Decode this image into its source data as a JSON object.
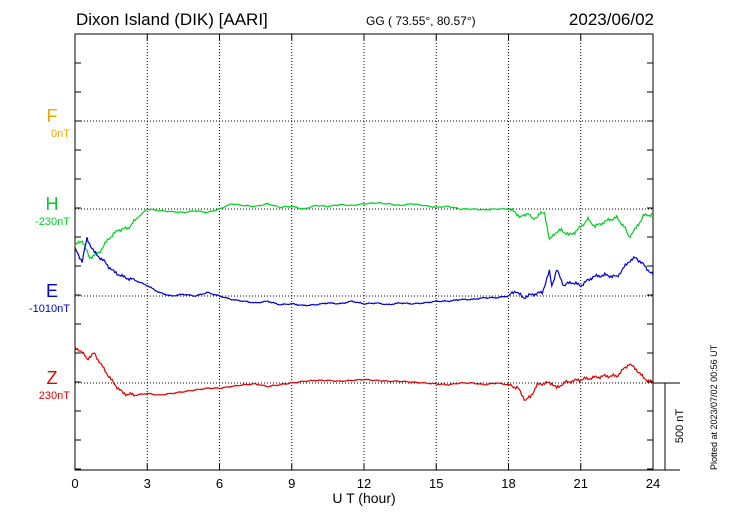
{
  "header": {
    "title": "Dixon Island (DIK)  [AARI]",
    "coords": "GG ( 73.55°,  80.57°)",
    "date": "2023/06/02"
  },
  "plotted_note": "Plotted at 2023/07/02 00:56 UT",
  "components": [
    {
      "name": "F",
      "baseline": "0nT",
      "color": "#f0a800"
    },
    {
      "name": "H",
      "baseline": "-230nT",
      "color": "#00d020"
    },
    {
      "name": "E",
      "baseline": "-1010nT",
      "color": "#0000d0"
    },
    {
      "name": "Z",
      "baseline": "230nT",
      "color": "#e00000"
    }
  ],
  "chart_data": {
    "type": "line",
    "xlabel": "U T (hour)",
    "xlim": [
      0,
      24
    ],
    "xticks": [
      "0",
      "3",
      "6",
      "9",
      "12",
      "15",
      "18",
      "21",
      "24"
    ],
    "scale_label": "500 nT",
    "grid": true,
    "series": [
      {
        "name": "H",
        "color": "#00d020",
        "baseline_nT": -230,
        "x": [
          0,
          0.3,
          0.6,
          1,
          1.4,
          1.8,
          2.2,
          2.6,
          3,
          3.5,
          4,
          4.5,
          5,
          5.5,
          6,
          6.5,
          7,
          7.5,
          8,
          8.5,
          9,
          9.5,
          10,
          10.5,
          11,
          11.5,
          12,
          12.5,
          13,
          13.5,
          14,
          14.5,
          15,
          15.5,
          16,
          16.5,
          17,
          17.5,
          18,
          18.3,
          18.5,
          18.8,
          19,
          19.3,
          19.5,
          19.7,
          19.9,
          20.2,
          20.5,
          20.8,
          21,
          21.3,
          21.6,
          21.9,
          22.2,
          22.5,
          22.8,
          23,
          23.3,
          23.6,
          24
        ],
        "y": [
          -210,
          -180,
          -280,
          -250,
          -170,
          -120,
          -110,
          -50,
          0,
          -10,
          -15,
          -20,
          -10,
          -20,
          0,
          30,
          20,
          15,
          30,
          10,
          15,
          0,
          20,
          15,
          25,
          20,
          30,
          35,
          30,
          20,
          30,
          20,
          10,
          15,
          0,
          0,
          -5,
          0,
          0,
          -20,
          -50,
          -20,
          -60,
          -30,
          -20,
          -180,
          -140,
          -120,
          -150,
          -130,
          -100,
          -60,
          -100,
          -80,
          -60,
          -50,
          -100,
          -160,
          -110,
          -40,
          -30
        ]
      },
      {
        "name": "E",
        "color": "#0000d0",
        "baseline_nT": -1010,
        "x": [
          0,
          0.3,
          0.5,
          0.8,
          1.2,
          1.6,
          2,
          2.5,
          3,
          3.5,
          4,
          4.5,
          5,
          5.5,
          6,
          6.5,
          7,
          7.5,
          8,
          8.5,
          9,
          9.5,
          10,
          10.5,
          11,
          11.5,
          12,
          12.5,
          13,
          13.5,
          14,
          14.5,
          15,
          15.5,
          16,
          16.5,
          17,
          17.5,
          18,
          18.3,
          18.6,
          19,
          19.4,
          19.7,
          19.8,
          20,
          20.3,
          20.6,
          21,
          21.5,
          22,
          22.5,
          23,
          23.3,
          23.6,
          24
        ],
        "y": [
          270,
          200,
          330,
          250,
          200,
          140,
          110,
          90,
          60,
          20,
          0,
          10,
          0,
          20,
          0,
          -20,
          -30,
          -40,
          -30,
          -50,
          -45,
          -55,
          -50,
          -40,
          -45,
          -30,
          -45,
          -40,
          -50,
          -40,
          -45,
          -40,
          -30,
          -30,
          -20,
          -20,
          -10,
          -10,
          0,
          30,
          -10,
          10,
          20,
          140,
          60,
          150,
          60,
          80,
          60,
          110,
          120,
          110,
          200,
          220,
          180,
          120
        ]
      },
      {
        "name": "Z",
        "color": "#e00000",
        "baseline_nT": 230,
        "x": [
          0,
          0.2,
          0.5,
          0.8,
          1.2,
          1.6,
          2,
          2.5,
          3,
          3.5,
          4,
          4.5,
          5,
          5.5,
          6,
          6.5,
          7,
          7.5,
          8,
          8.5,
          9,
          9.5,
          10,
          10.5,
          11,
          11.5,
          12,
          12.5,
          13,
          13.5,
          14,
          14.5,
          15,
          15.5,
          16,
          16.5,
          17,
          17.5,
          18,
          18.4,
          18.7,
          18.9,
          19.2,
          19.5,
          19.8,
          20,
          20.3,
          20.6,
          21,
          21.5,
          22,
          22.5,
          23,
          23.3,
          23.6,
          24
        ],
        "y": [
          200,
          190,
          140,
          170,
          80,
          0,
          -60,
          -70,
          -60,
          -70,
          -60,
          -50,
          -40,
          -30,
          -30,
          -20,
          -10,
          -5,
          -20,
          -10,
          0,
          10,
          15,
          15,
          10,
          15,
          20,
          15,
          10,
          10,
          5,
          0,
          -5,
          -10,
          0,
          0,
          -10,
          0,
          -10,
          -30,
          -100,
          -80,
          -10,
          0,
          0,
          -30,
          0,
          10,
          20,
          30,
          40,
          40,
          110,
          80,
          30,
          0
        ]
      }
    ]
  }
}
